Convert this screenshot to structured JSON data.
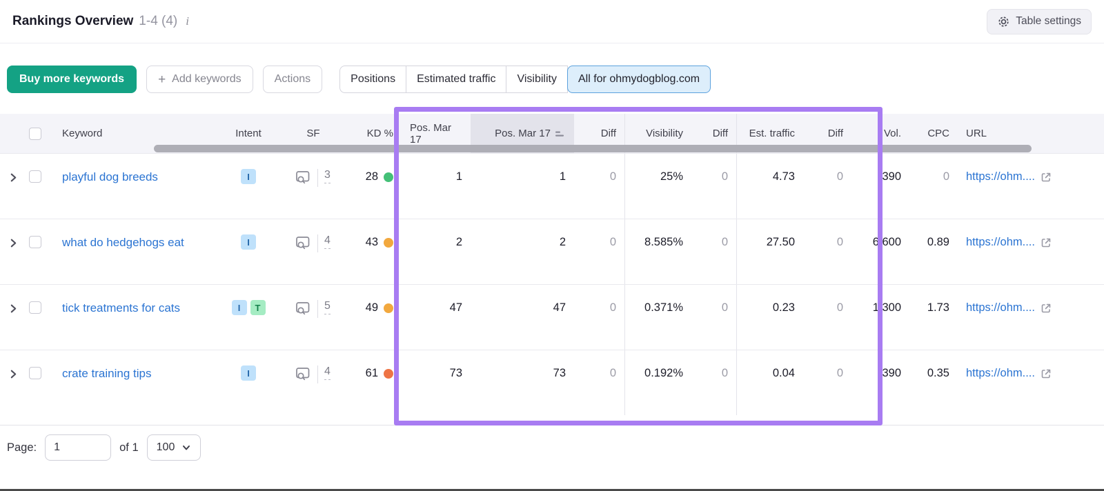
{
  "header": {
    "title": "Rankings Overview",
    "range": "1-4 (4)",
    "table_settings_label": "Table settings"
  },
  "toolbar": {
    "buy_label": "Buy more keywords",
    "add_label": "Add keywords",
    "add_plus": "+",
    "actions_label": "Actions",
    "segments": [
      {
        "label": "Positions",
        "selected": false
      },
      {
        "label": "Estimated traffic",
        "selected": false
      },
      {
        "label": "Visibility",
        "selected": false
      },
      {
        "label": "All for ohmydogblog.com",
        "selected": true
      }
    ]
  },
  "table": {
    "headers": {
      "keyword": "Keyword",
      "intent": "Intent",
      "sf": "SF",
      "kd": "KD %",
      "pos1": "Pos. Mar 17",
      "pos2": "Pos. Mar 17",
      "diff": "Diff",
      "visibility": "Visibility",
      "est_traffic": "Est. traffic",
      "vol": "Vol.",
      "cpc": "CPC",
      "url": "URL"
    },
    "sorted_column": "pos2",
    "intent_styles": {
      "I": {
        "bg": "#bfe1fb",
        "fg": "#2467a9"
      },
      "T": {
        "bg": "#a5ecc3",
        "fg": "#15814b"
      }
    },
    "rows": [
      {
        "keyword": "playful dog breeds",
        "intents": [
          "I"
        ],
        "sf": "3",
        "kd": "28",
        "kd_color": "#44c077",
        "pos1": "1",
        "pos2": "1",
        "diff1": "0",
        "visibility": "25%",
        "diff2": "0",
        "est_traffic": "4.73",
        "diff3": "0",
        "volume": "390",
        "cpc": "0",
        "cpc_muted": true,
        "url": "https://ohm...."
      },
      {
        "keyword": "what do hedgehogs eat",
        "intents": [
          "I"
        ],
        "sf": "4",
        "kd": "43",
        "kd_color": "#f2a83e",
        "pos1": "2",
        "pos2": "2",
        "diff1": "0",
        "visibility": "8.585%",
        "diff2": "0",
        "est_traffic": "27.50",
        "diff3": "0",
        "volume": "6,600",
        "cpc": "0.89",
        "cpc_muted": false,
        "url": "https://ohm...."
      },
      {
        "keyword": "tick treatments for cats",
        "intents": [
          "I",
          "T"
        ],
        "sf": "5",
        "kd": "49",
        "kd_color": "#f2a83e",
        "pos1": "47",
        "pos2": "47",
        "diff1": "0",
        "visibility": "0.371%",
        "diff2": "0",
        "est_traffic": "0.23",
        "diff3": "0",
        "volume": "1,300",
        "cpc": "1.73",
        "cpc_muted": false,
        "url": "https://ohm...."
      },
      {
        "keyword": "crate training tips",
        "intents": [
          "I"
        ],
        "sf": "4",
        "kd": "61",
        "kd_color": "#ee7445",
        "pos1": "73",
        "pos2": "73",
        "diff1": "0",
        "visibility": "0.192%",
        "diff2": "0",
        "est_traffic": "0.04",
        "diff3": "0",
        "volume": "390",
        "cpc": "0.35",
        "cpc_muted": false,
        "url": "https://ohm...."
      }
    ]
  },
  "footer": {
    "page_label": "Page:",
    "page_value": "1",
    "of_label": "of 1",
    "page_size": "100"
  },
  "colors": {
    "buy_button_green": "#14a284",
    "highlight_purple": "#a87cf2",
    "selected_segment_blue": "#ddeefb",
    "link_blue": "#2b74d2"
  }
}
